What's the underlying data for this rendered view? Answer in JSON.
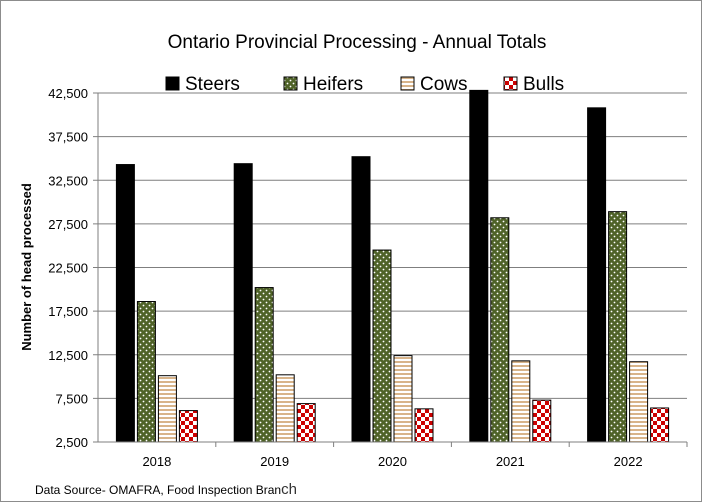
{
  "chart_data": {
    "type": "bar",
    "title": "Ontario Provincial  Processing  - Annual Totals",
    "xlabel": "",
    "ylabel": "Number of head processed",
    "ylim": [
      2500,
      42500
    ],
    "yticks": [
      "2,500",
      "7,500",
      "12,500",
      "17,500",
      "22,500",
      "27,500",
      "32,500",
      "37,500",
      "42,500"
    ],
    "ytick_values": [
      2500,
      7500,
      12500,
      17500,
      22500,
      27500,
      32500,
      37500,
      42500
    ],
    "grid": true,
    "legend_position": "top",
    "categories": [
      "2018",
      "2019",
      "2020",
      "2021",
      "2022"
    ],
    "series": [
      {
        "name": "Steers",
        "values": [
          34300,
          34400,
          35200,
          42800,
          40800
        ],
        "color": "#000000",
        "pattern": "solid"
      },
      {
        "name": "Heifers",
        "values": [
          18600,
          20200,
          24500,
          28200,
          28900
        ],
        "color": "#4f6228",
        "pattern": "dots"
      },
      {
        "name": "Cows",
        "values": [
          10100,
          10200,
          12400,
          11800,
          11700
        ],
        "color": "#d8b48a",
        "pattern": "horizontal-stripes"
      },
      {
        "name": "Bulls",
        "values": [
          6100,
          6900,
          6300,
          7300,
          6400
        ],
        "color": "#cc0000",
        "pattern": "checker"
      }
    ]
  },
  "source": {
    "main": "Data Source- OMAFRA, Food Inspection Bran",
    "tail": "ch"
  }
}
